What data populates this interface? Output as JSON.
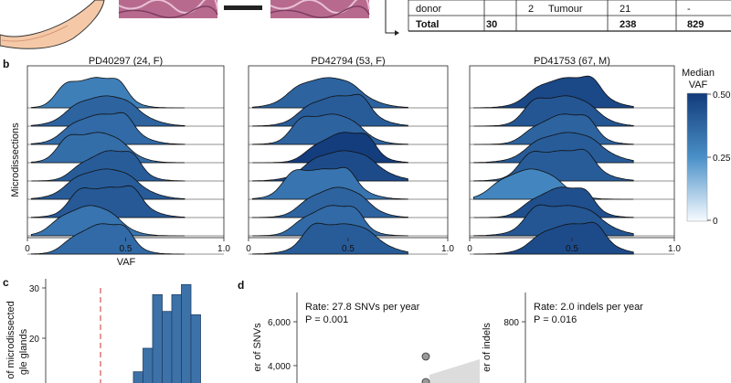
{
  "panel_b": {
    "label": "b",
    "ylabel": "Microdissections",
    "xlabel": "VAF",
    "legend_title_line1": "Median",
    "legend_title_line2": "VAF",
    "legend_ticks": [
      "0.50",
      "0.25",
      "0"
    ],
    "colors": {
      "low": "#f7fbff",
      "mid": "#4a90c8",
      "high": "#123a7a"
    },
    "donors": [
      {
        "title": "PD40297 (24, F)",
        "ticks": [
          "0",
          "0.5",
          "1.0"
        ]
      },
      {
        "title": "PD42794 (53, F)",
        "ticks": [
          "0",
          "0.5",
          "1.0"
        ]
      },
      {
        "title": "PD41753 (67, M)",
        "ticks": [
          "0",
          "0.5",
          "1.0"
        ]
      }
    ]
  },
  "chart_data": [
    {
      "type": "area",
      "panel": "b",
      "title": "PD40297 (24, F)",
      "xlabel": "VAF",
      "ylabel": "Microdissections",
      "xlim": [
        0,
        1.0
      ],
      "ridges": [
        {
          "peak_vaf": 0.35,
          "median_vaf": 0.3
        },
        {
          "peak_vaf": 0.4,
          "median_vaf": 0.38
        },
        {
          "peak_vaf": 0.38,
          "median_vaf": 0.36
        },
        {
          "peak_vaf": 0.36,
          "median_vaf": 0.35
        },
        {
          "peak_vaf": 0.42,
          "median_vaf": 0.4
        },
        {
          "peak_vaf": 0.4,
          "median_vaf": 0.4
        },
        {
          "peak_vaf": 0.42,
          "median_vaf": 0.41
        },
        {
          "peak_vaf": 0.32,
          "median_vaf": 0.33
        },
        {
          "peak_vaf": 0.38,
          "median_vaf": 0.36
        }
      ]
    },
    {
      "type": "area",
      "panel": "b",
      "title": "PD42794 (53, F)",
      "xlabel": "VAF",
      "xlim": [
        0,
        1.0
      ],
      "ridges": [
        {
          "peak_vaf": 0.4,
          "median_vaf": 0.38
        },
        {
          "peak_vaf": 0.45,
          "median_vaf": 0.4
        },
        {
          "peak_vaf": 0.42,
          "median_vaf": 0.38
        },
        {
          "peak_vaf": 0.48,
          "median_vaf": 0.49
        },
        {
          "peak_vaf": 0.48,
          "median_vaf": 0.45
        },
        {
          "peak_vaf": 0.38,
          "median_vaf": 0.33
        },
        {
          "peak_vaf": 0.45,
          "median_vaf": 0.38
        },
        {
          "peak_vaf": 0.42,
          "median_vaf": 0.36
        },
        {
          "peak_vaf": 0.48,
          "median_vaf": 0.4
        }
      ]
    },
    {
      "type": "area",
      "panel": "b",
      "title": "PD41753 (67, M)",
      "xlabel": "VAF",
      "xlim": [
        0,
        1.0
      ],
      "ridges": [
        {
          "peak_vaf": 0.48,
          "median_vaf": 0.46
        },
        {
          "peak_vaf": 0.47,
          "median_vaf": 0.42
        },
        {
          "peak_vaf": 0.46,
          "median_vaf": 0.38
        },
        {
          "peak_vaf": 0.48,
          "median_vaf": 0.4
        },
        {
          "peak_vaf": 0.45,
          "median_vaf": 0.4
        },
        {
          "peak_vaf": 0.3,
          "median_vaf": 0.28
        },
        {
          "peak_vaf": 0.45,
          "median_vaf": 0.44
        },
        {
          "peak_vaf": 0.48,
          "median_vaf": 0.42
        },
        {
          "peak_vaf": 0.5,
          "median_vaf": 0.45
        }
      ]
    },
    {
      "type": "bar",
      "panel": "c",
      "ylabel_line1": "of microdissected",
      "ylabel_line2": "gle glands",
      "yticks": [
        20,
        30
      ],
      "threshold_line": true,
      "values": [
        1,
        1,
        5,
        12,
        28,
        23,
        28,
        31,
        22
      ]
    },
    {
      "type": "scatter",
      "panel": "d",
      "ylabel": "er of SNVs",
      "yticks": [
        "6,000",
        "4,000"
      ],
      "annotation_rate": "Rate: 27.8 SNVs per year",
      "annotation_p": "P = 0.001"
    },
    {
      "type": "scatter",
      "panel": "d",
      "ylabel": "er of indels",
      "yticks": [
        "800"
      ],
      "annotation_rate": "Rate: 2.0 indels per year",
      "annotation_p": "P = 0.016"
    }
  ],
  "panel_a": {
    "table_rows": [
      {
        "c1": "donor",
        "c2": "",
        "c3": "2",
        "c4": "Tumour",
        "c5": "21",
        "c6": "-"
      },
      {
        "c1": "Total",
        "c2": "30",
        "c3": "",
        "c4": "",
        "c5": "238",
        "c6": "829"
      }
    ]
  },
  "panel_c": {
    "label": "c"
  },
  "panel_d": {
    "label": "d"
  }
}
